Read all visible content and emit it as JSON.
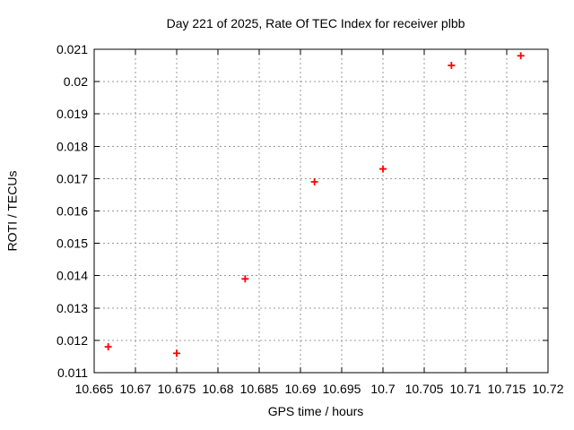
{
  "title": "Day 221 of 2025, Rate Of TEC Index for receiver plbb",
  "colors": {
    "background": "#ffffff",
    "frame": "#000000",
    "grid": "#999999",
    "text": "#000000",
    "marker": "#ff0000"
  },
  "chart_data": {
    "type": "scatter",
    "title": "Day 221 of 2025, Rate Of TEC Index for receiver plbb",
    "xlabel": "GPS time / hours",
    "ylabel": "ROTI / TECUs",
    "xlim": [
      10.665,
      10.72
    ],
    "ylim": [
      0.011,
      0.021
    ],
    "x_ticks": [
      10.665,
      10.67,
      10.675,
      10.68,
      10.685,
      10.69,
      10.695,
      10.7,
      10.705,
      10.71,
      10.715,
      10.72
    ],
    "x_tick_labels": [
      "10.665",
      "10.67",
      "10.675",
      "10.68",
      "10.685",
      "10.69",
      "10.695",
      "10.7",
      "10.705",
      "10.71",
      "10.715",
      "10.72"
    ],
    "y_ticks": [
      0.011,
      0.012,
      0.013,
      0.014,
      0.015,
      0.016,
      0.017,
      0.018,
      0.019,
      0.02,
      0.021
    ],
    "y_tick_labels": [
      "0.011",
      "0.012",
      "0.013",
      "0.014",
      "0.015",
      "0.016",
      "0.017",
      "0.018",
      "0.019",
      "0.02",
      "0.021"
    ],
    "grid": true,
    "legend": "none",
    "series": [
      {
        "name": "ROTI",
        "marker": "plus",
        "color": "#ff0000",
        "x": [
          10.6667,
          10.675,
          10.6833,
          10.6917,
          10.7,
          10.7083,
          10.7167
        ],
        "y": [
          0.0118,
          0.0116,
          0.0139,
          0.0169,
          0.0173,
          0.0205,
          0.0208
        ]
      }
    ]
  }
}
